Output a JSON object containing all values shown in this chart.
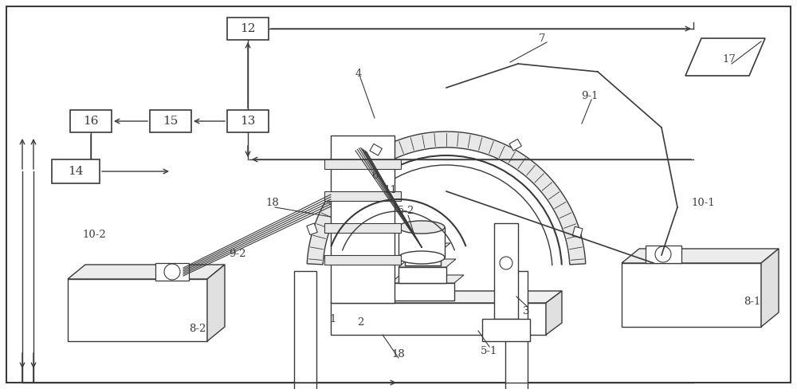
{
  "figsize": [
    10.0,
    4.88
  ],
  "dpi": 100,
  "lc": "#3a3a3a",
  "lw": 1.0,
  "bg": "white",
  "xlim": [
    0,
    1000
  ],
  "ylim": [
    0,
    488
  ]
}
